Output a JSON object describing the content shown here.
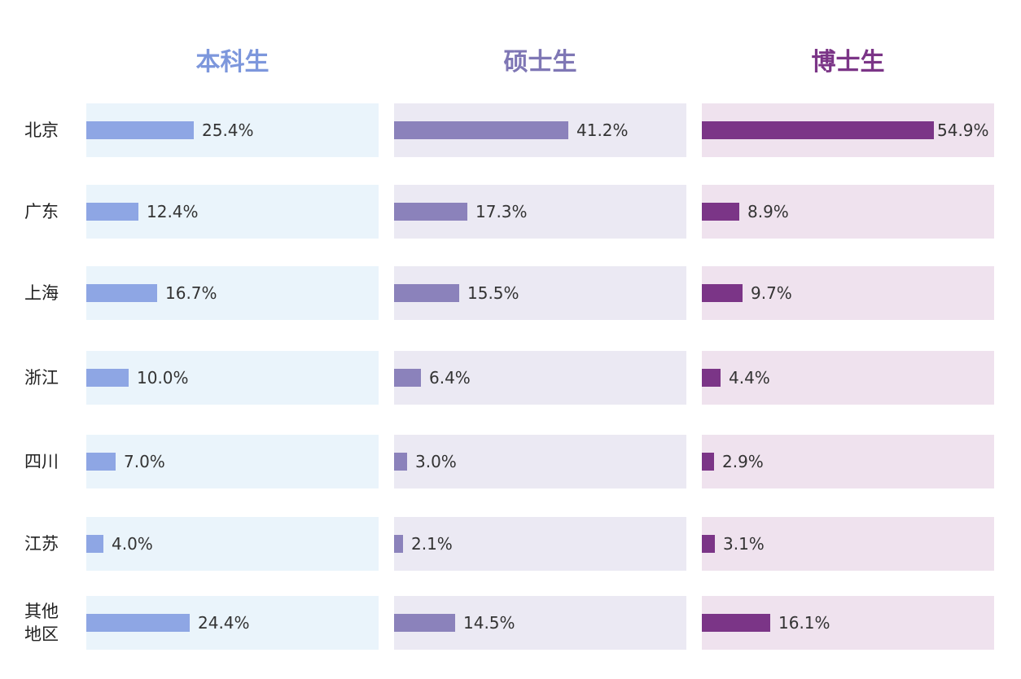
{
  "chart_data": {
    "type": "bar",
    "orientation": "horizontal",
    "categories": [
      "北京",
      "广东",
      "上海",
      "浙江",
      "四川",
      "江苏",
      "其他地区"
    ],
    "series": [
      {
        "name": "本科生",
        "values": [
          25.4,
          12.4,
          16.7,
          10.0,
          7.0,
          4.0,
          24.4
        ],
        "color": "#8ea6e4",
        "panel_color": "#eaf4fb",
        "title_color": "#7d97dc"
      },
      {
        "name": "硕士生",
        "values": [
          41.2,
          17.3,
          15.5,
          6.4,
          3.0,
          2.1,
          14.5
        ],
        "color": "#8b82bb",
        "panel_color": "#ebe9f3",
        "title_color": "#7f77b5"
      },
      {
        "name": "博士生",
        "values": [
          54.9,
          8.9,
          9.7,
          4.4,
          2.9,
          3.1,
          16.1
        ],
        "color": "#7b3587",
        "panel_color": "#efe2ee",
        "title_color": "#7b3587"
      }
    ],
    "labels": [
      [
        "25.4%",
        "12.4%",
        "16.7%",
        "10.0%",
        "7.0%",
        "4.0%",
        "24.4%"
      ],
      [
        "41.2%",
        "17.3%",
        "15.5%",
        "6.4%",
        "3.0%",
        "2.1%",
        "14.5%"
      ],
      [
        "54.9%",
        "8.9%",
        "9.7%",
        "4.4%",
        "2.9%",
        "3.1%",
        "16.1%"
      ]
    ],
    "xlim": [
      0,
      55
    ],
    "grid": false,
    "legend": "none"
  }
}
